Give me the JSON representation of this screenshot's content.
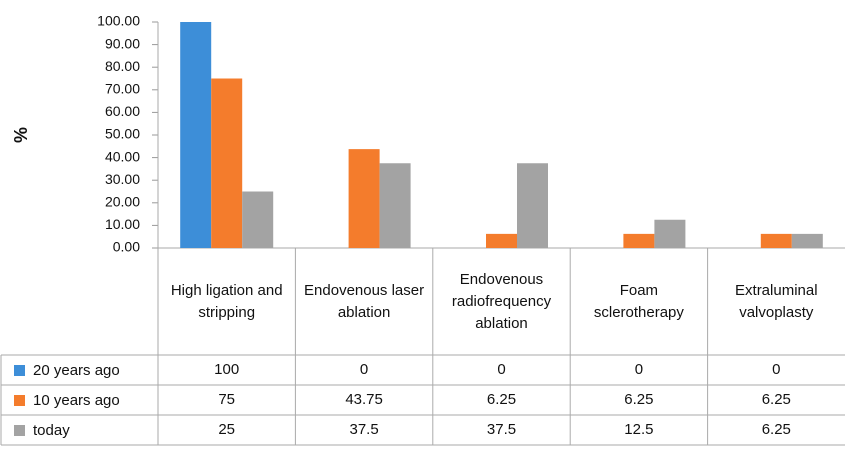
{
  "chart_data": {
    "type": "bar",
    "y_label": "%",
    "categories": [
      "High ligation and stripping",
      "Endovenous laser ablation",
      "Endovenous radiofrequency ablation",
      "Foam sclerotherapy",
      "Extraluminal valvoplasty"
    ],
    "series": [
      {
        "name": "20 years ago",
        "color": "#3d8ed8",
        "values": [
          100,
          0,
          0,
          0,
          0
        ]
      },
      {
        "name": "10 years ago",
        "color": "#f47c2c",
        "values": [
          75,
          43.75,
          6.25,
          6.25,
          6.25
        ]
      },
      {
        "name": "today",
        "color": "#a3a3a3",
        "values": [
          25,
          37.5,
          37.5,
          12.5,
          6.25
        ]
      }
    ],
    "ylim": [
      0,
      100
    ],
    "yticks": [
      {
        "value": 0,
        "label": "0.00"
      },
      {
        "value": 10,
        "label": "10.00"
      },
      {
        "value": 20,
        "label": "20.00"
      },
      {
        "value": 30,
        "label": "30.00"
      },
      {
        "value": 40,
        "label": "40.00"
      },
      {
        "value": 50,
        "label": "50.00"
      },
      {
        "value": 60,
        "label": "60.00"
      },
      {
        "value": 70,
        "label": "70.00"
      },
      {
        "value": 80,
        "label": "80.00"
      },
      {
        "value": 90,
        "label": "90.00"
      },
      {
        "value": 100,
        "label": "100.00"
      }
    ],
    "grid": false
  }
}
